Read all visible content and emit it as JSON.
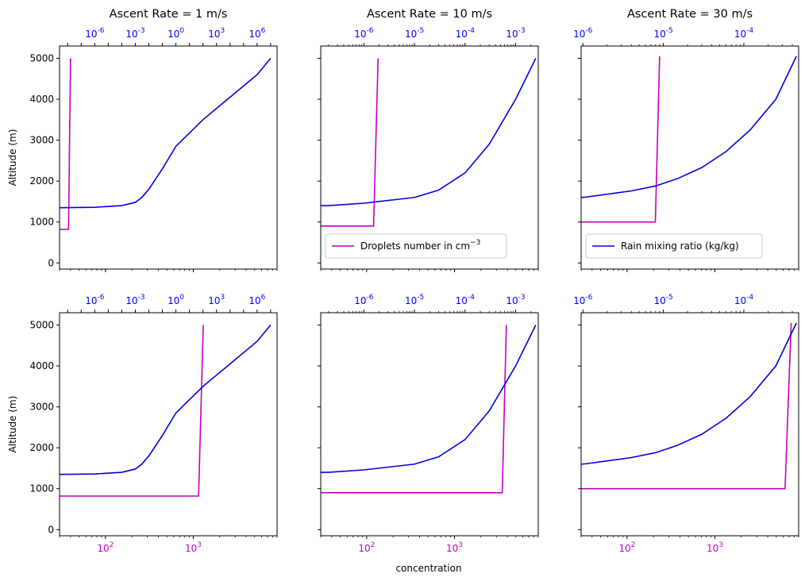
{
  "colors": {
    "droplets": "#c000c0",
    "rain": "#0000dd",
    "axis": "#000000",
    "top_axis": "#0000ff",
    "bottom_axis_magenta": "#c000c0"
  },
  "figure": {
    "xlabel": "concentration",
    "ylabel": "Altitude (m)"
  },
  "chart_data": [
    {
      "id": "r0c0",
      "type": "line",
      "title": "Ascent Rate = 1 m/s",
      "ylabel": "Altitude (m)",
      "ylim": [
        -150,
        5300
      ],
      "yticks": [
        0,
        1000,
        2000,
        3000,
        4000,
        5000
      ],
      "bottom_axis": {
        "scale": "log",
        "lim": [
          30,
          9000
        ],
        "ticks": [
          100,
          1000
        ],
        "labels": [
          "",
          ""
        ],
        "label_color": "#000000"
      },
      "top_axis": {
        "scale": "log",
        "lim": [
          2.5e-09,
          30000000.0
        ],
        "ticks": [
          1e-06,
          0.001,
          1,
          1000.0,
          1000000.0
        ],
        "labels": [
          "-6",
          "-3",
          "0",
          "3",
          "6"
        ]
      },
      "series": [
        {
          "name": "",
          "axis": "bottom",
          "color": "#c000c0",
          "x": [
            30,
            38,
            40
          ],
          "y": [
            820,
            820,
            5000
          ]
        },
        {
          "name": "",
          "axis": "top",
          "color": "#0000dd",
          "x": [
            2.5e-09,
            1e-06,
            0.0001,
            0.001,
            0.003,
            0.01,
            0.1,
            1,
            100,
            10000.0,
            1000000.0,
            10000000.0
          ],
          "y": [
            1350,
            1360,
            1400,
            1480,
            1600,
            1800,
            2300,
            2850,
            3500,
            4050,
            4600,
            5000
          ]
        }
      ]
    },
    {
      "id": "r0c1",
      "type": "line",
      "title": "Ascent Rate = 10 m/s",
      "ylabel": "",
      "ylim": [
        -150,
        5300
      ],
      "yticks": [
        0,
        1000,
        2000,
        3000,
        4000,
        5000
      ],
      "bottom_axis": {
        "scale": "log",
        "lim": [
          30,
          9000
        ],
        "ticks": [
          100,
          1000
        ],
        "labels": [
          "",
          ""
        ],
        "label_color": "#000000"
      },
      "top_axis": {
        "scale": "log",
        "lim": [
          1.4e-07,
          0.0028
        ],
        "ticks": [
          1e-06,
          1e-05,
          0.0001,
          0.001
        ],
        "labels": [
          "-6",
          "-5",
          "-4",
          "-3"
        ]
      },
      "legend": {
        "text": "Droplets number in cm",
        "sup": "−3",
        "color": "#c000c0",
        "position": "lower-left"
      },
      "series": [
        {
          "name": "Droplets number in cm−3",
          "axis": "bottom",
          "color": "#c000c0",
          "x": [
            30,
            120,
            135
          ],
          "y": [
            900,
            900,
            5000
          ]
        },
        {
          "name": "",
          "axis": "top",
          "color": "#0000dd",
          "x": [
            1.4e-07,
            2e-07,
            1e-06,
            1e-05,
            3e-05,
            0.0001,
            0.0003,
            0.001,
            0.0025
          ],
          "y": [
            1400,
            1400,
            1460,
            1600,
            1780,
            2200,
            2900,
            4000,
            5000
          ]
        }
      ]
    },
    {
      "id": "r0c2",
      "type": "line",
      "title": "Ascent Rate = 30 m/s",
      "ylabel": "",
      "ylim": [
        -150,
        5300
      ],
      "yticks": [
        0,
        1000,
        2000,
        3000,
        4000,
        5000
      ],
      "bottom_axis": {
        "scale": "log",
        "lim": [
          30,
          9000
        ],
        "ticks": [
          100,
          1000
        ],
        "labels": [
          "",
          ""
        ],
        "label_color": "#000000"
      },
      "top_axis": {
        "scale": "log",
        "lim": [
          9.5e-07,
          0.00048
        ],
        "ticks": [
          1e-06,
          1e-05,
          0.0001
        ],
        "labels": [
          "-6",
          "-5",
          "-4"
        ]
      },
      "legend": {
        "text": "Rain mixing ratio (kg/kg)",
        "sup": "",
        "color": "#0000dd",
        "position": "lower-left"
      },
      "series": [
        {
          "name": "",
          "axis": "bottom",
          "color": "#c000c0",
          "x": [
            30,
            210,
            235
          ],
          "y": [
            1000,
            1000,
            5050
          ]
        },
        {
          "name": "Rain mixing ratio (kg/kg)",
          "axis": "top",
          "color": "#0000dd",
          "x": [
            9.5e-07,
            1.1e-06,
            2e-06,
            4e-06,
            8e-06,
            1.5e-05,
            3e-05,
            6e-05,
            0.00012,
            0.00025,
            0.00045
          ],
          "y": [
            1600,
            1610,
            1680,
            1760,
            1880,
            2060,
            2330,
            2720,
            3250,
            4000,
            5050
          ]
        }
      ]
    },
    {
      "id": "r1c0",
      "type": "line",
      "title": "",
      "ylabel": "Altitude (m)",
      "ylim": [
        -150,
        5300
      ],
      "yticks": [
        0,
        1000,
        2000,
        3000,
        4000,
        5000
      ],
      "bottom_axis": {
        "scale": "log",
        "lim": [
          30,
          9000
        ],
        "ticks": [
          100,
          1000
        ],
        "labels": [
          "2",
          "3"
        ],
        "label_color": "#c000c0"
      },
      "top_axis": {
        "scale": "log",
        "lim": [
          2.5e-09,
          30000000.0
        ],
        "ticks": [
          1e-06,
          0.001,
          1,
          1000.0,
          1000000.0
        ],
        "labels": [
          "-6",
          "-3",
          "0",
          "3",
          "6"
        ]
      },
      "series": [
        {
          "name": "",
          "axis": "bottom",
          "color": "#c000c0",
          "x": [
            30,
            1150,
            1300
          ],
          "y": [
            820,
            820,
            5000
          ]
        },
        {
          "name": "",
          "axis": "top",
          "color": "#0000dd",
          "x": [
            2.5e-09,
            1e-06,
            0.0001,
            0.001,
            0.003,
            0.01,
            0.1,
            1,
            100,
            10000.0,
            1000000.0,
            10000000.0
          ],
          "y": [
            1350,
            1360,
            1400,
            1480,
            1600,
            1800,
            2300,
            2850,
            3500,
            4050,
            4600,
            5000
          ]
        }
      ]
    },
    {
      "id": "r1c1",
      "type": "line",
      "title": "",
      "ylabel": "",
      "ylim": [
        -150,
        5300
      ],
      "yticks": [
        0,
        1000,
        2000,
        3000,
        4000,
        5000
      ],
      "bottom_axis": {
        "scale": "log",
        "lim": [
          30,
          9000
        ],
        "ticks": [
          100,
          1000
        ],
        "labels": [
          "2",
          "3"
        ],
        "label_color": "#c000c0"
      },
      "top_axis": {
        "scale": "log",
        "lim": [
          1.4e-07,
          0.0028
        ],
        "ticks": [
          1e-06,
          1e-05,
          0.0001,
          0.001
        ],
        "labels": [
          "-6",
          "-5",
          "-4",
          "-3"
        ]
      },
      "series": [
        {
          "name": "",
          "axis": "bottom",
          "color": "#c000c0",
          "x": [
            30,
            3500,
            3900
          ],
          "y": [
            900,
            900,
            5000
          ]
        },
        {
          "name": "",
          "axis": "top",
          "color": "#0000dd",
          "x": [
            1.4e-07,
            2e-07,
            1e-06,
            1e-05,
            3e-05,
            0.0001,
            0.0003,
            0.001,
            0.0025
          ],
          "y": [
            1400,
            1400,
            1460,
            1600,
            1780,
            2200,
            2900,
            4000,
            5000
          ]
        }
      ]
    },
    {
      "id": "r1c2",
      "type": "line",
      "title": "",
      "ylabel": "",
      "ylim": [
        -150,
        5300
      ],
      "yticks": [
        0,
        1000,
        2000,
        3000,
        4000,
        5000
      ],
      "bottom_axis": {
        "scale": "log",
        "lim": [
          30,
          9000
        ],
        "ticks": [
          100,
          1000
        ],
        "labels": [
          "2",
          "3"
        ],
        "label_color": "#c000c0"
      },
      "top_axis": {
        "scale": "log",
        "lim": [
          9.5e-07,
          0.00048
        ],
        "ticks": [
          1e-06,
          1e-05,
          0.0001
        ],
        "labels": [
          "-6",
          "-5",
          "-4"
        ]
      },
      "series": [
        {
          "name": "",
          "axis": "bottom",
          "color": "#c000c0",
          "x": [
            30,
            6300,
            7400
          ],
          "y": [
            1000,
            1000,
            5050
          ]
        },
        {
          "name": "",
          "axis": "top",
          "color": "#0000dd",
          "x": [
            9.5e-07,
            1.1e-06,
            2e-06,
            4e-06,
            8e-06,
            1.5e-05,
            3e-05,
            6e-05,
            0.00012,
            0.00025,
            0.00045
          ],
          "y": [
            1600,
            1610,
            1680,
            1760,
            1880,
            2060,
            2330,
            2720,
            3250,
            4000,
            5050
          ]
        }
      ]
    }
  ]
}
